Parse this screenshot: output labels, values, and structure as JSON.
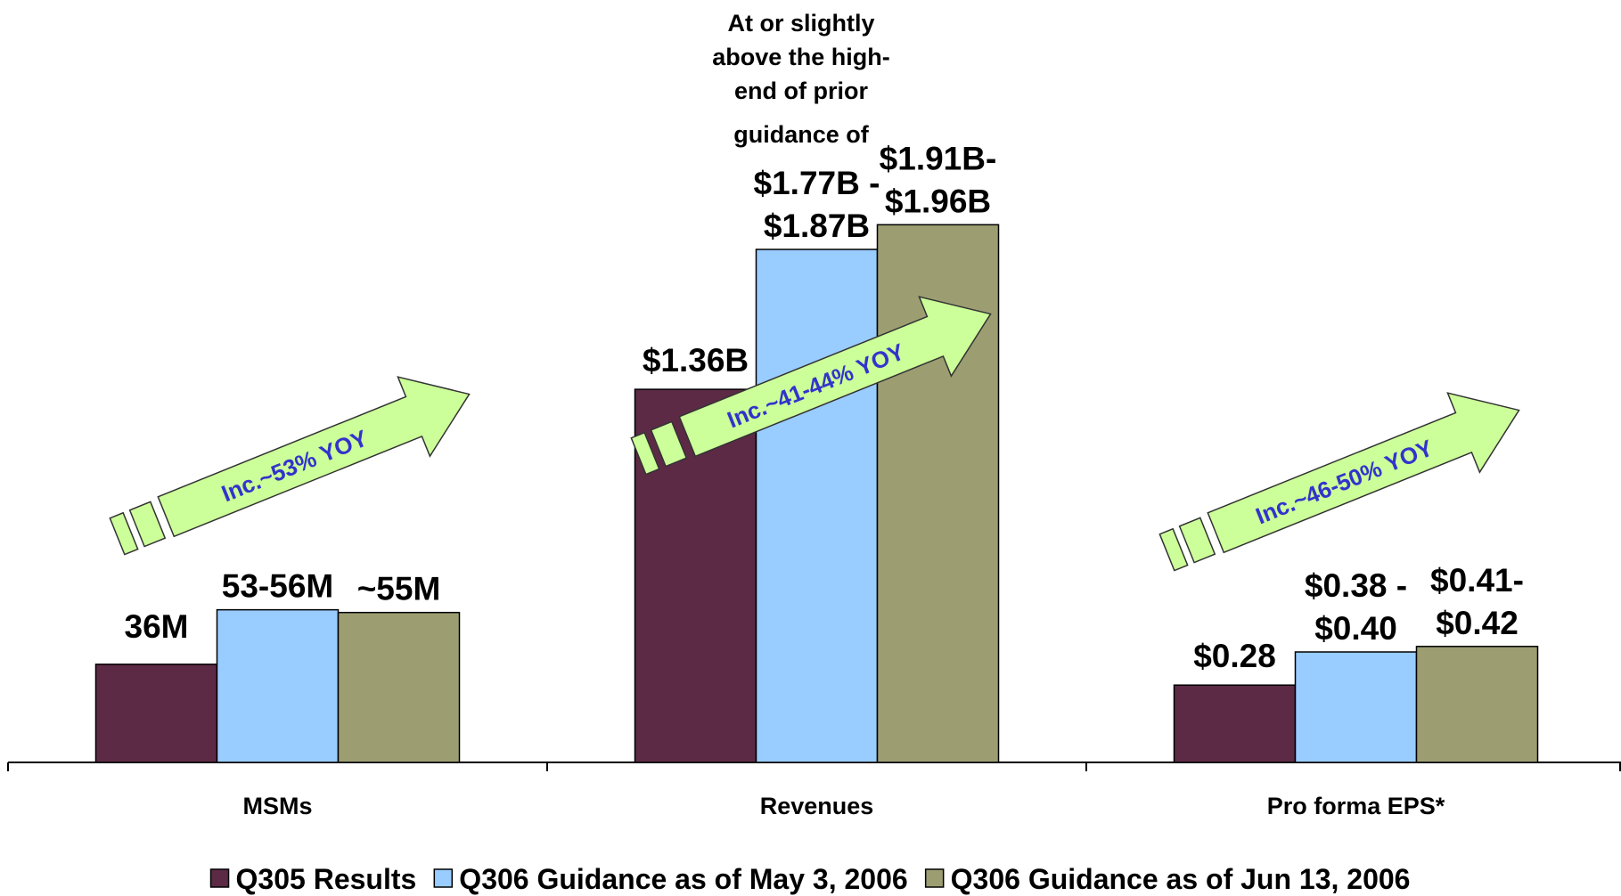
{
  "chart_data": {
    "type": "bar",
    "categories": [
      "MSMs",
      "Revenues",
      "Pro forma EPS*"
    ],
    "series": [
      {
        "name": "Q305 Results",
        "color": "#5C2A45",
        "values": [
          36,
          1.36,
          0.28
        ],
        "value_labels": [
          [
            "36M"
          ],
          [
            "$1.36B"
          ],
          [
            "$0.28"
          ]
        ]
      },
      {
        "name": "Q306 Guidance as of May 3, 2006",
        "color": "#99CCFF",
        "values": [
          56,
          1.87,
          0.4
        ],
        "value_labels": [
          [
            "53-56M"
          ],
          [
            "$1.77B -",
            "$1.87B"
          ],
          [
            "$0.38 -",
            "$0.40"
          ]
        ]
      },
      {
        "name": "Q306 Guidance as of Jun 13, 2006",
        "color": "#9C9E72",
        "values": [
          55,
          1.96,
          0.42
        ],
        "value_labels": [
          [
            "~55M"
          ],
          [
            "$1.91B-",
            "$1.96B"
          ],
          [
            "$0.41-",
            "$0.42"
          ]
        ]
      }
    ],
    "annotation": [
      "At or slightly",
      "above the high-",
      "end of prior",
      "guidance of"
    ],
    "arrows": [
      "Inc.~53% YOY",
      "Inc.~41-44% YOY",
      "Inc.~46-50% YOY"
    ]
  }
}
